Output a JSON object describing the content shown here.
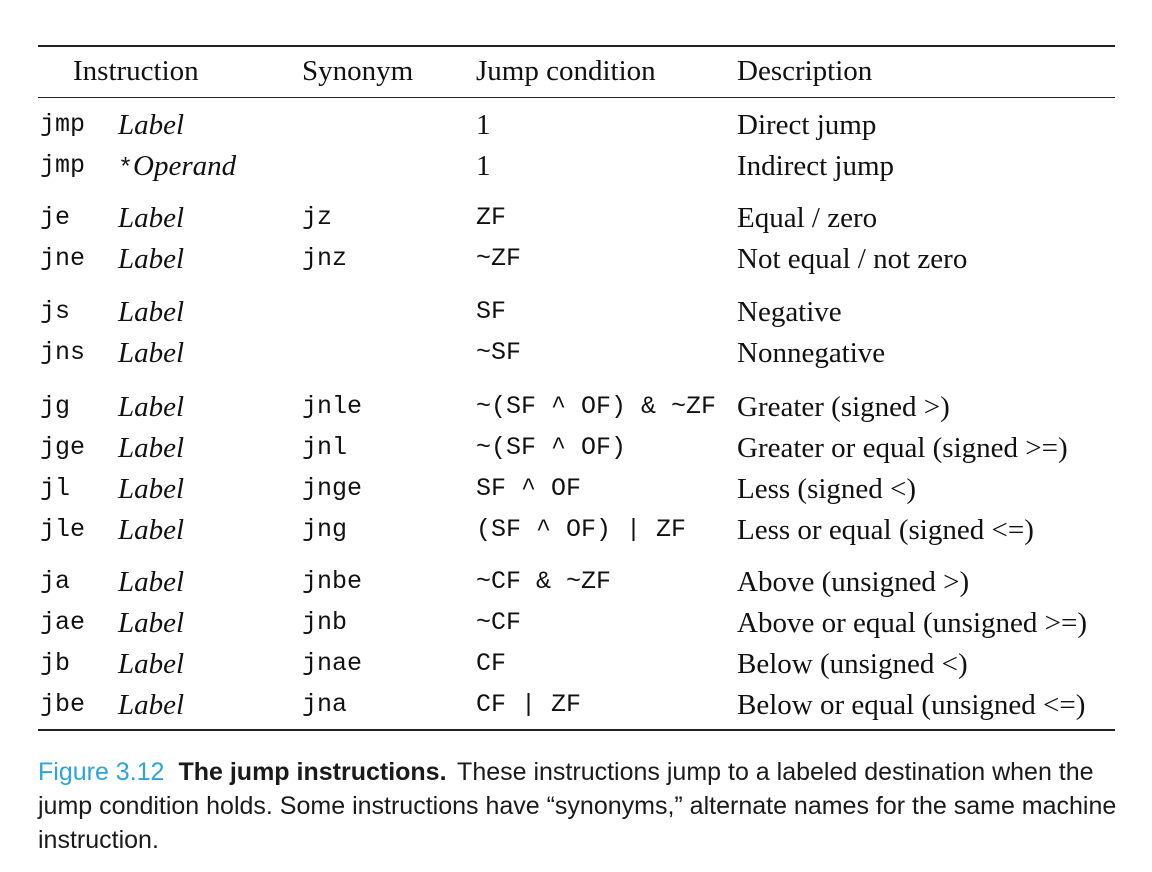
{
  "table": {
    "headers": {
      "instruction": "Instruction",
      "synonym": "Synonym",
      "condition": "Jump condition",
      "description": "Description"
    },
    "rows": [
      {
        "mnemonic": "jmp",
        "operand": "Label",
        "operand_prefix": "",
        "synonym": "",
        "condition": "1",
        "condition_style": "serif",
        "description": "Direct jump"
      },
      {
        "mnemonic": "jmp",
        "operand": "Operand",
        "operand_prefix": "*",
        "synonym": "",
        "condition": "1",
        "condition_style": "serif",
        "description": "Indirect jump"
      },
      {
        "mnemonic": "je",
        "operand": "Label",
        "operand_prefix": "",
        "synonym": "jz",
        "condition": "ZF",
        "condition_style": "mono",
        "description": "Equal / zero"
      },
      {
        "mnemonic": "jne",
        "operand": "Label",
        "operand_prefix": "",
        "synonym": "jnz",
        "condition": "~ZF",
        "condition_style": "mono",
        "description": "Not equal / not zero"
      },
      {
        "mnemonic": "js",
        "operand": "Label",
        "operand_prefix": "",
        "synonym": "",
        "condition": "SF",
        "condition_style": "mono",
        "description": "Negative"
      },
      {
        "mnemonic": "jns",
        "operand": "Label",
        "operand_prefix": "",
        "synonym": "",
        "condition": "~SF",
        "condition_style": "mono",
        "description": "Nonnegative"
      },
      {
        "mnemonic": "jg",
        "operand": "Label",
        "operand_prefix": "",
        "synonym": "jnle",
        "condition": "~(SF ^ OF) & ~ZF",
        "condition_style": "mono",
        "description": "Greater (signed >)"
      },
      {
        "mnemonic": "jge",
        "operand": "Label",
        "operand_prefix": "",
        "synonym": "jnl",
        "condition": "~(SF ^ OF)",
        "condition_style": "mono",
        "description": "Greater or equal (signed >=)"
      },
      {
        "mnemonic": "jl",
        "operand": "Label",
        "operand_prefix": "",
        "synonym": "jnge",
        "condition": "SF ^ OF",
        "condition_style": "mono",
        "description": "Less (signed <)"
      },
      {
        "mnemonic": "jle",
        "operand": "Label",
        "operand_prefix": "",
        "synonym": "jng",
        "condition": "(SF ^ OF) | ZF",
        "condition_style": "mono",
        "description": "Less or equal (signed <=)"
      },
      {
        "mnemonic": "ja",
        "operand": "Label",
        "operand_prefix": "",
        "synonym": "jnbe",
        "condition": "~CF & ~ZF",
        "condition_style": "mono",
        "description": "Above (unsigned >)"
      },
      {
        "mnemonic": "jae",
        "operand": "Label",
        "operand_prefix": "",
        "synonym": "jnb",
        "condition": "~CF",
        "condition_style": "mono",
        "description": "Above or equal (unsigned >=)"
      },
      {
        "mnemonic": "jb",
        "operand": "Label",
        "operand_prefix": "",
        "synonym": "jnae",
        "condition": "CF",
        "condition_style": "mono",
        "description": "Below (unsigned <)"
      },
      {
        "mnemonic": "jbe",
        "operand": "Label",
        "operand_prefix": "",
        "synonym": "jna",
        "condition": "CF | ZF",
        "condition_style": "mono",
        "description": "Below or equal (unsigned <=)"
      }
    ]
  },
  "caption": {
    "label": "Figure 3.12",
    "title": "The jump instructions.",
    "text": "These instructions jump to a labeled destination when the jump condition holds. Some instructions have “synonyms,” alternate names for the same machine instruction."
  },
  "colors": {
    "figure_label": "#2aa6dc",
    "rule": "#222222"
  }
}
